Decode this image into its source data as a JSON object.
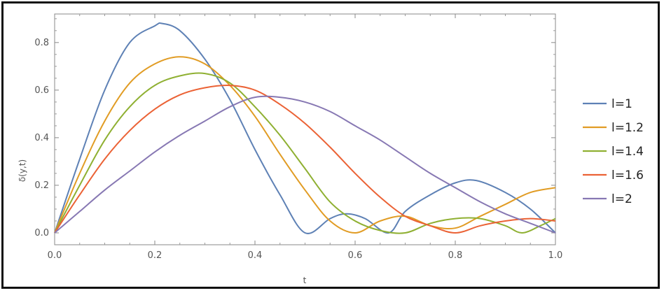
{
  "chart_data": {
    "type": "line",
    "title": "",
    "xlabel": "t",
    "ylabel": "δ(y,t)",
    "xlim": [
      0,
      1
    ],
    "ylim": [
      -0.05,
      0.92
    ],
    "xticks": [
      "0.0",
      "0.2",
      "0.4",
      "0.6",
      "0.8",
      "1.0"
    ],
    "yticks": [
      "0.0",
      "0.2",
      "0.4",
      "0.6",
      "0.8"
    ],
    "grid": false,
    "legend_position": "right",
    "series": [
      {
        "name": "l=1",
        "color": "#5e81b5",
        "x": [
          0,
          0.05,
          0.1,
          0.15,
          0.2,
          0.215,
          0.25,
          0.3,
          0.35,
          0.4,
          0.45,
          0.5,
          0.55,
          0.583,
          0.62,
          0.667,
          0.7,
          0.75,
          0.8,
          0.842,
          0.9,
          0.95,
          1.0
        ],
        "y": [
          0,
          0.31,
          0.6,
          0.8,
          0.87,
          0.88,
          0.85,
          0.73,
          0.56,
          0.35,
          0.16,
          0.0,
          0.06,
          0.08,
          0.06,
          0.0,
          0.09,
          0.16,
          0.21,
          0.22,
          0.17,
          0.1,
          0.0
        ]
      },
      {
        "name": "l=1.2",
        "color": "#e19c24",
        "x": [
          0,
          0.05,
          0.1,
          0.15,
          0.2,
          0.25,
          0.3,
          0.35,
          0.4,
          0.45,
          0.5,
          0.55,
          0.6,
          0.65,
          0.7,
          0.75,
          0.8,
          0.85,
          0.9,
          0.95,
          1.0
        ],
        "y": [
          0,
          0.25,
          0.47,
          0.63,
          0.71,
          0.74,
          0.71,
          0.62,
          0.49,
          0.33,
          0.18,
          0.05,
          0.0,
          0.05,
          0.07,
          0.03,
          0.02,
          0.07,
          0.12,
          0.17,
          0.19
        ]
      },
      {
        "name": "l=1.4",
        "color": "#8fb032",
        "x": [
          0,
          0.05,
          0.1,
          0.15,
          0.2,
          0.25,
          0.3,
          0.35,
          0.4,
          0.45,
          0.5,
          0.55,
          0.6,
          0.65,
          0.7,
          0.75,
          0.8,
          0.85,
          0.9,
          0.933,
          0.97,
          1.0
        ],
        "y": [
          0,
          0.2,
          0.39,
          0.53,
          0.62,
          0.66,
          0.67,
          0.63,
          0.53,
          0.41,
          0.27,
          0.13,
          0.05,
          0.01,
          0.0,
          0.04,
          0.06,
          0.06,
          0.03,
          0.0,
          0.03,
          0.06
        ]
      },
      {
        "name": "l=1.6",
        "color": "#eb6235",
        "x": [
          0,
          0.05,
          0.1,
          0.15,
          0.2,
          0.25,
          0.3,
          0.35,
          0.4,
          0.45,
          0.5,
          0.55,
          0.6,
          0.65,
          0.7,
          0.75,
          0.8,
          0.85,
          0.9,
          0.95,
          1.0
        ],
        "y": [
          0,
          0.16,
          0.31,
          0.43,
          0.52,
          0.58,
          0.61,
          0.62,
          0.6,
          0.54,
          0.46,
          0.36,
          0.25,
          0.15,
          0.07,
          0.03,
          0.0,
          0.03,
          0.05,
          0.06,
          0.05
        ]
      },
      {
        "name": "l=2",
        "color": "#8778b3",
        "x": [
          0,
          0.05,
          0.1,
          0.15,
          0.2,
          0.25,
          0.3,
          0.35,
          0.4,
          0.45,
          0.5,
          0.55,
          0.6,
          0.65,
          0.7,
          0.75,
          0.8,
          0.85,
          0.9,
          0.95,
          1.0
        ],
        "y": [
          0,
          0.09,
          0.18,
          0.26,
          0.34,
          0.41,
          0.47,
          0.53,
          0.57,
          0.57,
          0.55,
          0.51,
          0.45,
          0.39,
          0.32,
          0.25,
          0.19,
          0.13,
          0.08,
          0.04,
          0.0
        ]
      }
    ]
  }
}
